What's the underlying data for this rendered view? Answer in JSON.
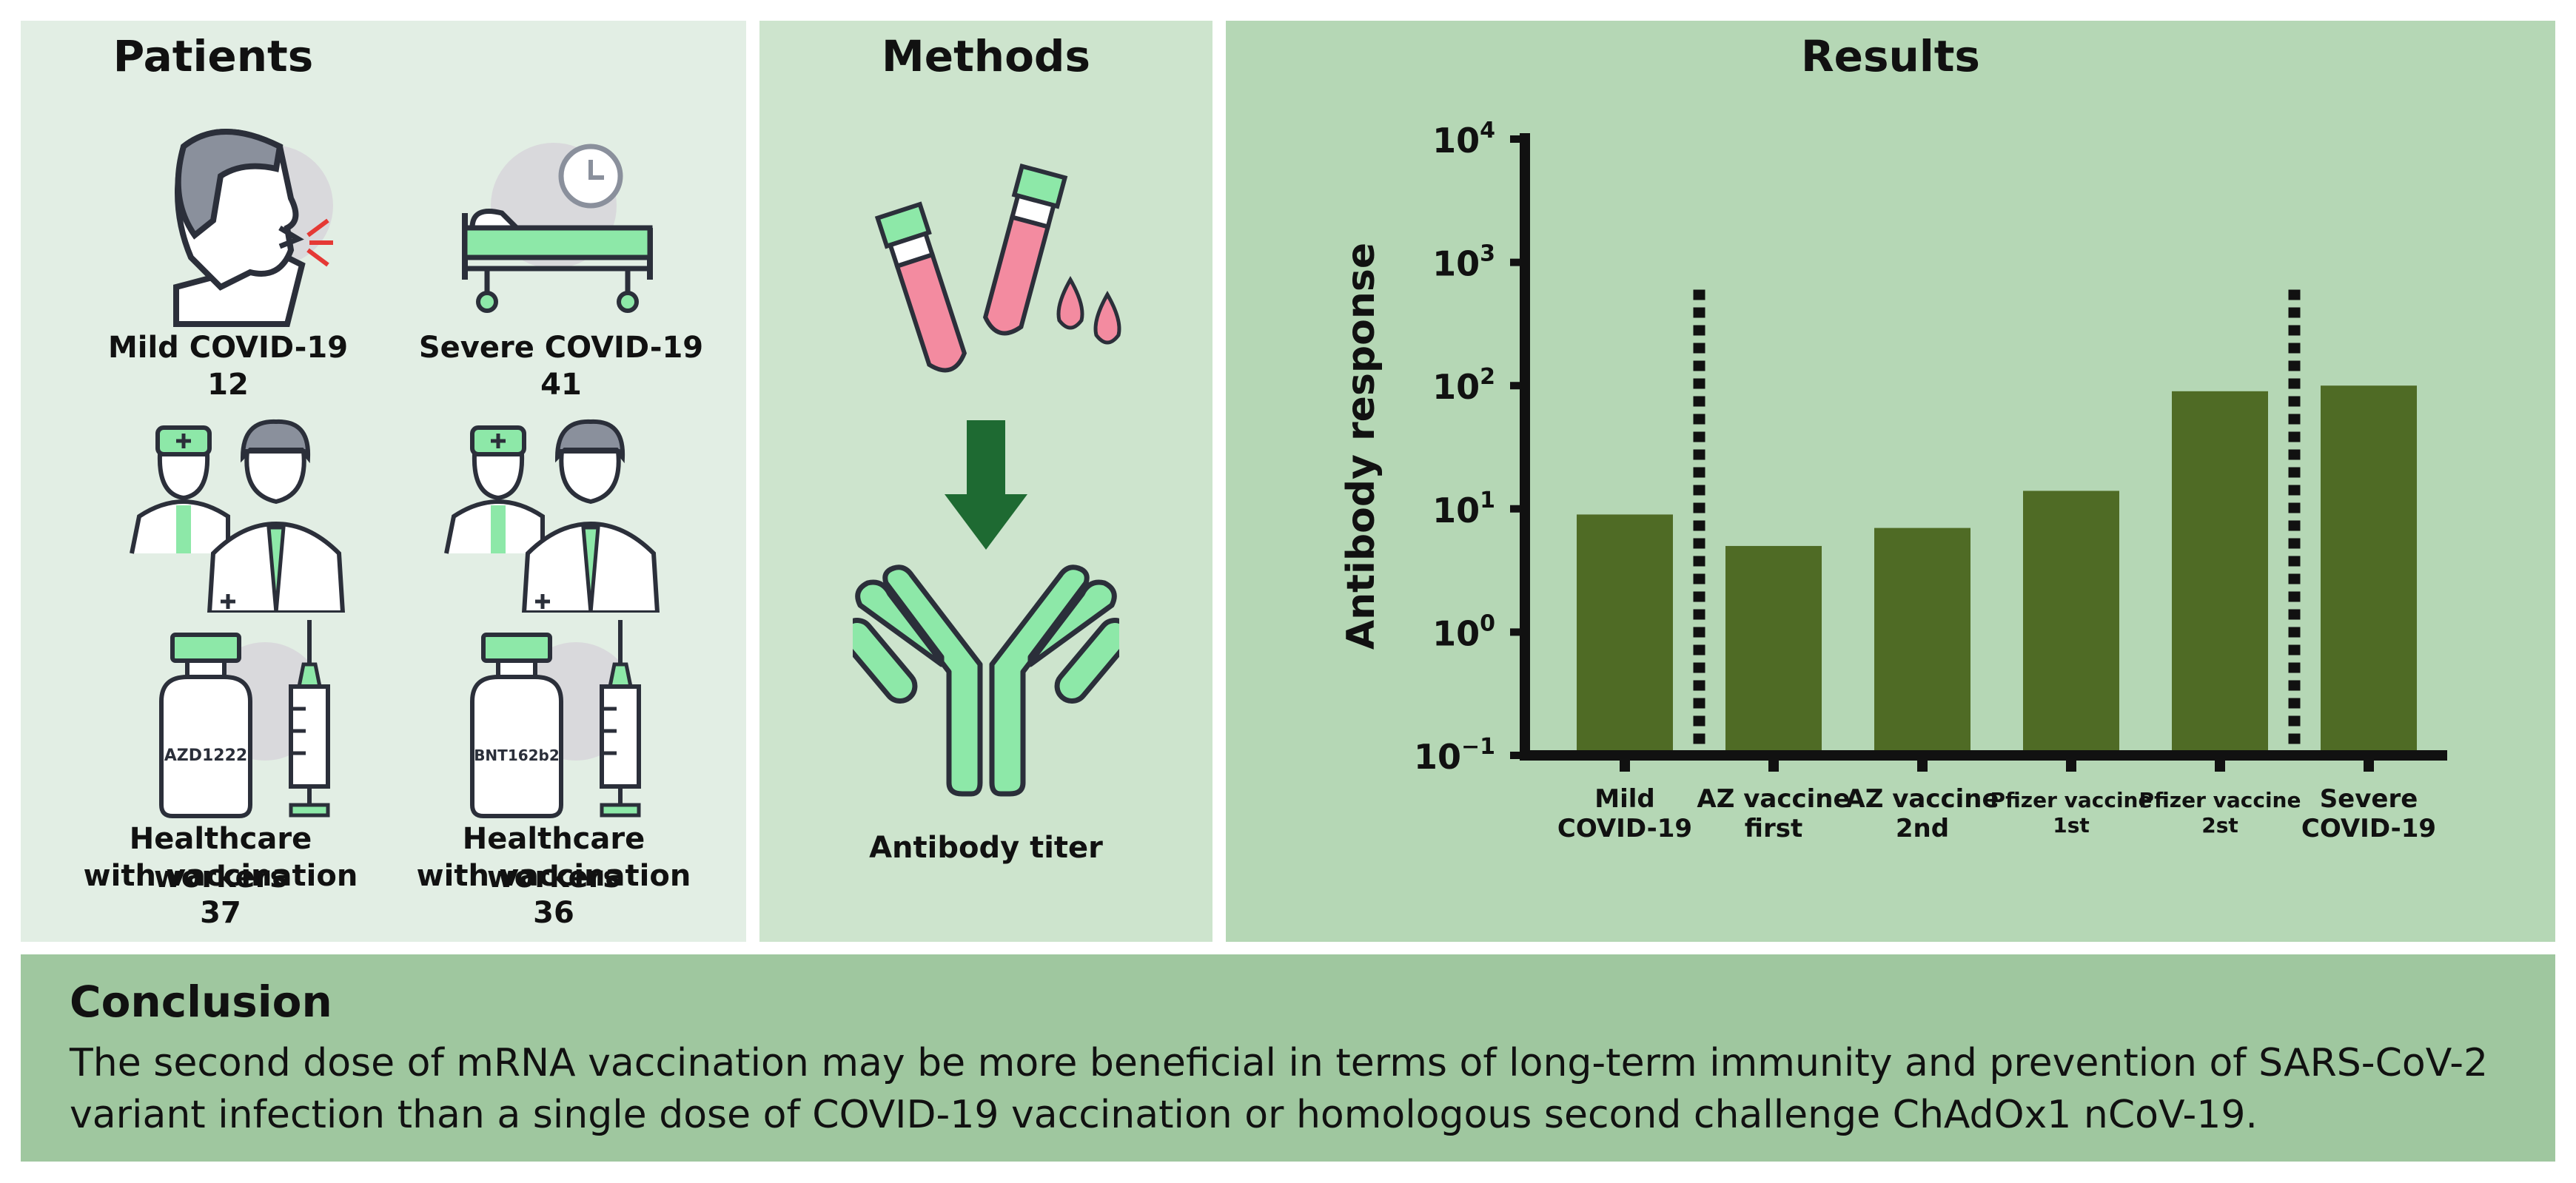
{
  "colors": {
    "patients_bg": "#e2eee4",
    "methods_bg": "#cde4cd",
    "results_bg": "#b5d7b5",
    "conclusion_bg": "#9fc79f",
    "bar": "#4f6b25",
    "accent_green": "#8de8a8",
    "dark_green": "#1e6a32"
  },
  "patients": {
    "title": "Patients",
    "groups": [
      {
        "name": "Mild COVID-19",
        "count": "12",
        "icon": "coughing-person-icon"
      },
      {
        "name": "Severe COVID-19",
        "count": "41",
        "icon": "hospital-bed-icon"
      },
      {
        "name_line1": "Healthcare workers",
        "name_line2": "with vaccination",
        "count": "37",
        "vial_label": "AZD1222",
        "icon": "vial-syringe-icon"
      },
      {
        "name_line1": "Healthcare workers",
        "name_line2": "with vaccination",
        "count": "36",
        "vial_label": "BNT162b2",
        "icon": "vial-syringe-icon"
      }
    ]
  },
  "methods": {
    "title": "Methods",
    "label": "Antibody titer"
  },
  "results": {
    "title": "Results"
  },
  "chart_data": {
    "type": "bar",
    "title": "Results",
    "ylabel": "Antibody response",
    "yscale": "log",
    "ylim": [
      0.1,
      10000
    ],
    "yticks": [
      {
        "base": "10",
        "exp": "4",
        "value": 10000
      },
      {
        "base": "10",
        "exp": "3",
        "value": 1000
      },
      {
        "base": "10",
        "exp": "2",
        "value": 100
      },
      {
        "base": "10",
        "exp": "1",
        "value": 10
      },
      {
        "base": "10",
        "exp": "0",
        "value": 1
      },
      {
        "base": "10",
        "exp": "−1",
        "value": 0.1
      }
    ],
    "categories": [
      [
        "Mild",
        "COVID-19"
      ],
      [
        "AZ vaccine",
        "first"
      ],
      [
        "AZ vaccine",
        "2nd"
      ],
      [
        "Pfizer vaccine",
        "1st"
      ],
      [
        "Pfizer vaccine",
        "2st"
      ],
      [
        "Severe",
        "COVID-19"
      ]
    ],
    "values": [
      9,
      5,
      7,
      14,
      90,
      100
    ],
    "separators_after_index": [
      0,
      4
    ],
    "separator_top_value": 600
  },
  "conclusion": {
    "title": "Conclusion",
    "text": "The second dose of mRNA vaccination may be more beneficial in terms of long-term immunity and prevention of SARS-CoV-2 variant infection than a single dose of COVID-19 vaccination or homologous second challenge ChAdOx1 nCoV-19."
  }
}
